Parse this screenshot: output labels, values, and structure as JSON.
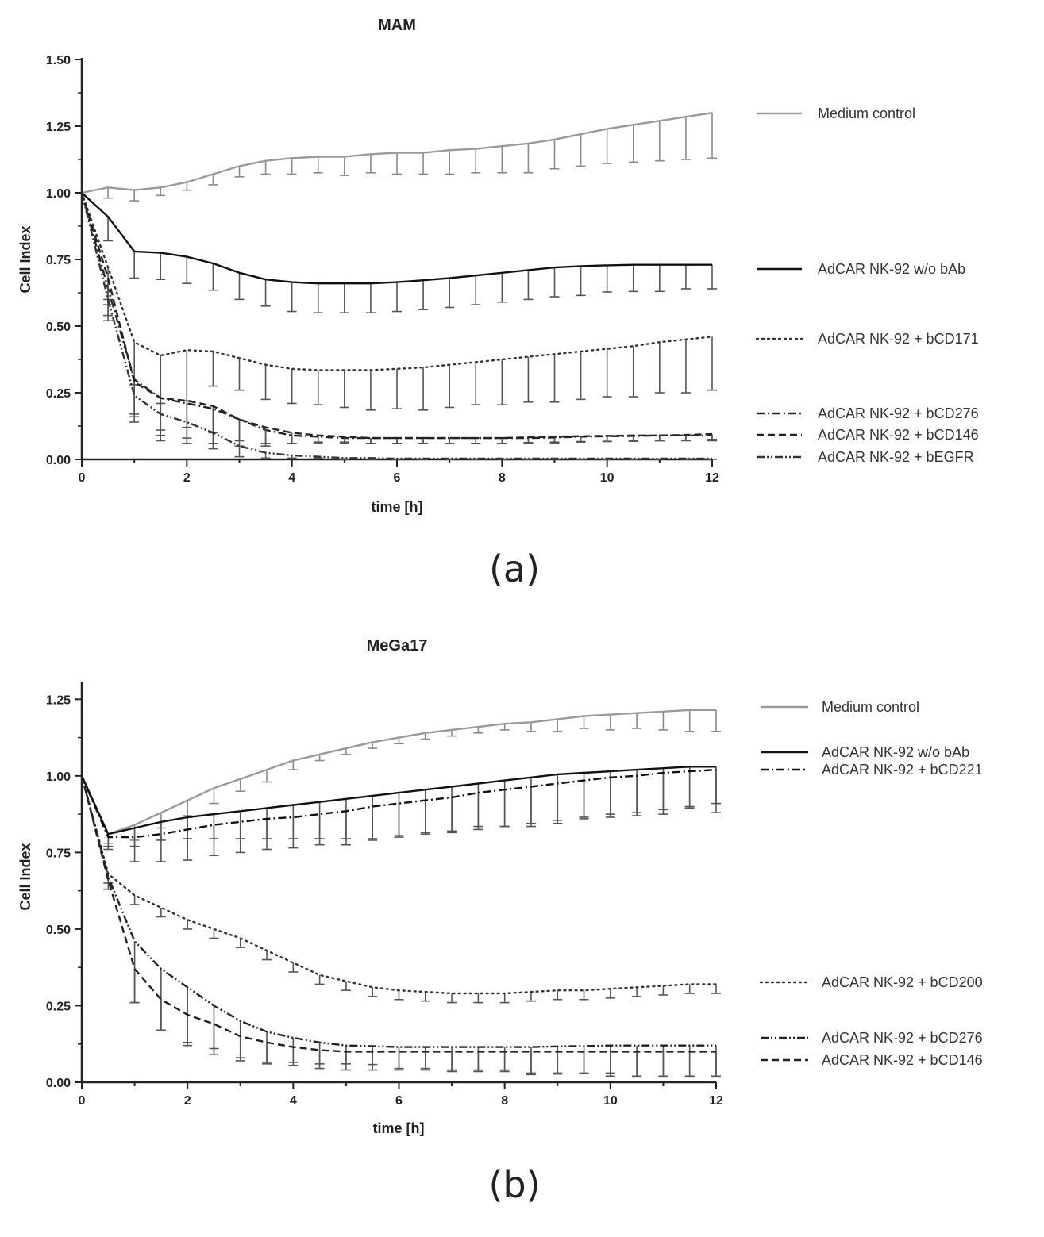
{
  "panel_labels": [
    "(a)",
    "(b)"
  ],
  "chart_data": [
    {
      "type": "line",
      "title": "MAM",
      "xlabel": "time [h]",
      "ylabel": "Cell Index",
      "xlim": [
        0,
        12
      ],
      "ylim": [
        0,
        1.5
      ],
      "xticks": [
        0,
        2,
        4,
        6,
        8,
        10,
        12
      ],
      "yticks": [
        0,
        0.25,
        0.5,
        0.75,
        1.0,
        1.25,
        1.5
      ],
      "ytick_labels": [
        "0.00",
        "0.25",
        "0.50",
        "0.75",
        "1.00",
        "1.25",
        "1.50"
      ],
      "grid": false,
      "legend": "right",
      "x": [
        0,
        0.5,
        1,
        1.5,
        2,
        2.5,
        3,
        3.5,
        4,
        4.5,
        5,
        5.5,
        6,
        6.5,
        7,
        7.5,
        8,
        8.5,
        9,
        9.5,
        10,
        10.5,
        11,
        11.5,
        12
      ],
      "series": [
        {
          "name": "Medium control",
          "style": "solid",
          "color": "#9a9a9a",
          "error_dir": "down",
          "values": [
            1.0,
            1.02,
            1.01,
            1.02,
            1.04,
            1.07,
            1.1,
            1.12,
            1.13,
            1.135,
            1.135,
            1.145,
            1.15,
            1.15,
            1.16,
            1.165,
            1.175,
            1.185,
            1.2,
            1.22,
            1.24,
            1.255,
            1.27,
            1.285,
            1.3
          ],
          "errors": [
            0,
            0.04,
            0.04,
            0.03,
            0.03,
            0.04,
            0.04,
            0.05,
            0.06,
            0.06,
            0.07,
            0.07,
            0.08,
            0.08,
            0.09,
            0.09,
            0.1,
            0.11,
            0.11,
            0.12,
            0.13,
            0.14,
            0.15,
            0.16,
            0.17
          ]
        },
        {
          "name": "AdCAR NK-92 w/o bAb",
          "style": "solid",
          "color": "#111111",
          "error_dir": "down",
          "values": [
            1.0,
            0.91,
            0.78,
            0.775,
            0.76,
            0.735,
            0.7,
            0.675,
            0.665,
            0.66,
            0.66,
            0.66,
            0.665,
            0.672,
            0.68,
            0.69,
            0.7,
            0.71,
            0.72,
            0.725,
            0.728,
            0.73,
            0.73,
            0.73,
            0.73
          ],
          "errors": [
            0,
            0.09,
            0.1,
            0.1,
            0.1,
            0.1,
            0.1,
            0.1,
            0.11,
            0.11,
            0.11,
            0.11,
            0.11,
            0.11,
            0.11,
            0.11,
            0.11,
            0.11,
            0.11,
            0.11,
            0.1,
            0.1,
            0.1,
            0.09,
            0.09
          ]
        },
        {
          "name": "AdCAR NK-92 + bCD171",
          "style": "dotted",
          "color": "#333333",
          "error_dir": "down",
          "values": [
            1.0,
            0.72,
            0.44,
            0.39,
            0.41,
            0.405,
            0.38,
            0.355,
            0.34,
            0.335,
            0.335,
            0.335,
            0.34,
            0.345,
            0.355,
            0.365,
            0.375,
            0.385,
            0.395,
            0.405,
            0.415,
            0.425,
            0.44,
            0.45,
            0.46
          ],
          "errors": [
            0,
            0.12,
            0.16,
            0.18,
            0.19,
            0.13,
            0.12,
            0.13,
            0.13,
            0.13,
            0.14,
            0.15,
            0.15,
            0.16,
            0.16,
            0.16,
            0.17,
            0.17,
            0.18,
            0.18,
            0.18,
            0.19,
            0.19,
            0.2,
            0.2
          ]
        },
        {
          "name": "AdCAR NK-92 + bCD276",
          "style": "dashdot",
          "color": "#222222",
          "error_dir": "down",
          "values": [
            1.0,
            0.64,
            0.3,
            0.23,
            0.21,
            0.19,
            0.15,
            0.11,
            0.09,
            0.085,
            0.08,
            0.08,
            0.08,
            0.08,
            0.08,
            0.08,
            0.08,
            0.08,
            0.082,
            0.085,
            0.087,
            0.088,
            0.09,
            0.09,
            0.09
          ],
          "errors": [
            0,
            0.1,
            0.14,
            0.14,
            0.13,
            0.13,
            0.1,
            0.06,
            0.03,
            0.02,
            0.02,
            0.02,
            0.02,
            0.02,
            0.02,
            0.02,
            0.02,
            0.02,
            0.02,
            0.02,
            0.02,
            0.02,
            0.02,
            0.02,
            0.02
          ]
        },
        {
          "name": "AdCAR NK-92 + bCD146",
          "style": "dashed",
          "color": "#222222",
          "error_dir": "down",
          "values": [
            1.0,
            0.68,
            0.29,
            0.23,
            0.22,
            0.2,
            0.15,
            0.12,
            0.1,
            0.09,
            0.085,
            0.08,
            0.08,
            0.08,
            0.08,
            0.08,
            0.08,
            0.083,
            0.085,
            0.087,
            0.088,
            0.09,
            0.09,
            0.092,
            0.095
          ],
          "errors": [
            0,
            0.1,
            0.12,
            0.12,
            0.1,
            0.1,
            0.08,
            0.06,
            0.04,
            0.03,
            0.02,
            0.02,
            0.02,
            0.02,
            0.02,
            0.02,
            0.02,
            0.02,
            0.02,
            0.02,
            0.02,
            0.02,
            0.02,
            0.02,
            0.02
          ]
        },
        {
          "name": "AdCAR NK-92 + bEGFR",
          "style": "dashdotdot",
          "color": "#333333",
          "error_dir": "down",
          "values": [
            1.0,
            0.6,
            0.24,
            0.17,
            0.14,
            0.1,
            0.05,
            0.025,
            0.015,
            0.01,
            0.005,
            0.005,
            0.003,
            0.003,
            0.003,
            0.003,
            0.003,
            0.003,
            0.003,
            0.003,
            0.003,
            0.003,
            0.003,
            0.003,
            0.003
          ],
          "errors": [
            0,
            0.08,
            0.1,
            0.1,
            0.08,
            0.06,
            0.04,
            0.02,
            0.01,
            0.005,
            0.005,
            0.005,
            0.005,
            0.005,
            0.005,
            0.005,
            0.005,
            0.005,
            0.005,
            0.005,
            0.005,
            0.005,
            0.005,
            0.005,
            0.005
          ]
        }
      ]
    },
    {
      "type": "line",
      "title": "MeGa17",
      "xlabel": "time [h]",
      "ylabel": "Cell Index",
      "xlim": [
        0,
        12
      ],
      "ylim": [
        0,
        1.3
      ],
      "xticks": [
        0,
        2,
        4,
        6,
        8,
        10,
        12
      ],
      "yticks": [
        0,
        0.25,
        0.5,
        0.75,
        1.0,
        1.25
      ],
      "ytick_labels": [
        "0.00",
        "0.25",
        "0.50",
        "0.75",
        "1.00",
        "1.25"
      ],
      "grid": false,
      "legend": "right",
      "x": [
        0,
        0.5,
        1,
        1.5,
        2,
        2.5,
        3,
        3.5,
        4,
        4.5,
        5,
        5.5,
        6,
        6.5,
        7,
        7.5,
        8,
        8.5,
        9,
        9.5,
        10,
        10.5,
        11,
        11.5,
        12
      ],
      "series": [
        {
          "name": "Medium control",
          "style": "solid",
          "color": "#9a9a9a",
          "error_dir": "down",
          "values": [
            1.0,
            0.81,
            0.84,
            0.88,
            0.92,
            0.96,
            0.99,
            1.02,
            1.05,
            1.07,
            1.09,
            1.11,
            1.125,
            1.14,
            1.15,
            1.16,
            1.17,
            1.175,
            1.185,
            1.195,
            1.2,
            1.205,
            1.21,
            1.215,
            1.215
          ],
          "errors": [
            0,
            0.03,
            0.05,
            0.05,
            0.05,
            0.05,
            0.04,
            0.04,
            0.03,
            0.02,
            0.02,
            0.02,
            0.02,
            0.02,
            0.02,
            0.02,
            0.02,
            0.03,
            0.04,
            0.04,
            0.05,
            0.05,
            0.06,
            0.07,
            0.07
          ]
        },
        {
          "name": "AdCAR NK-92 w/o bAb",
          "style": "solid",
          "color": "#111111",
          "error_dir": "down",
          "values": [
            1.0,
            0.81,
            0.83,
            0.85,
            0.865,
            0.875,
            0.885,
            0.895,
            0.905,
            0.915,
            0.925,
            0.935,
            0.945,
            0.955,
            0.965,
            0.975,
            0.985,
            0.995,
            1.005,
            1.01,
            1.015,
            1.02,
            1.025,
            1.03,
            1.03
          ],
          "errors": [
            0,
            0.04,
            0.06,
            0.06,
            0.07,
            0.08,
            0.09,
            0.1,
            0.11,
            0.12,
            0.13,
            0.14,
            0.14,
            0.14,
            0.15,
            0.15,
            0.15,
            0.16,
            0.16,
            0.15,
            0.15,
            0.15,
            0.15,
            0.13,
            0.12
          ]
        },
        {
          "name": "AdCAR NK-92 + bCD221",
          "style": "dashdot",
          "color": "#111111",
          "error_dir": "down",
          "values": [
            1.0,
            0.8,
            0.8,
            0.81,
            0.825,
            0.84,
            0.85,
            0.86,
            0.865,
            0.875,
            0.885,
            0.9,
            0.91,
            0.92,
            0.93,
            0.945,
            0.955,
            0.965,
            0.975,
            0.985,
            0.995,
            1.0,
            1.01,
            1.015,
            1.02
          ],
          "errors": [
            0,
            0.04,
            0.08,
            0.09,
            0.1,
            0.1,
            0.1,
            0.1,
            0.1,
            0.1,
            0.11,
            0.11,
            0.11,
            0.11,
            0.11,
            0.11,
            0.12,
            0.12,
            0.12,
            0.12,
            0.12,
            0.12,
            0.12,
            0.12,
            0.14
          ]
        },
        {
          "name": "AdCAR NK-92 + bCD200",
          "style": "dotted",
          "color": "#333333",
          "error_dir": "down",
          "values": [
            1.0,
            0.68,
            0.61,
            0.57,
            0.53,
            0.5,
            0.47,
            0.43,
            0.39,
            0.35,
            0.33,
            0.31,
            0.3,
            0.295,
            0.29,
            0.29,
            0.29,
            0.295,
            0.3,
            0.3,
            0.305,
            0.31,
            0.315,
            0.32,
            0.32
          ],
          "errors": [
            0,
            0.03,
            0.03,
            0.03,
            0.03,
            0.03,
            0.03,
            0.03,
            0.03,
            0.03,
            0.03,
            0.03,
            0.03,
            0.03,
            0.03,
            0.03,
            0.03,
            0.03,
            0.03,
            0.03,
            0.03,
            0.03,
            0.03,
            0.03,
            0.03
          ]
        },
        {
          "name": "AdCAR NK-92 + bCD276",
          "style": "dashdotdot",
          "color": "#222222",
          "error_dir": "down",
          "values": [
            1.0,
            0.67,
            0.46,
            0.37,
            0.31,
            0.25,
            0.2,
            0.165,
            0.145,
            0.13,
            0.12,
            0.118,
            0.115,
            0.115,
            0.115,
            0.115,
            0.115,
            0.115,
            0.117,
            0.118,
            0.12,
            0.12,
            0.12,
            0.12,
            0.12
          ],
          "errors": [
            0,
            0.04,
            0.2,
            0.2,
            0.19,
            0.16,
            0.13,
            0.1,
            0.08,
            0.07,
            0.06,
            0.06,
            0.07,
            0.07,
            0.08,
            0.08,
            0.08,
            0.09,
            0.09,
            0.09,
            0.1,
            0.1,
            0.1,
            0.1,
            0.1
          ]
        },
        {
          "name": "AdCAR NK-92 + bCD146",
          "style": "dashed",
          "color": "#222222",
          "error_dir": "down",
          "values": [
            1.0,
            0.66,
            0.37,
            0.27,
            0.22,
            0.19,
            0.15,
            0.13,
            0.115,
            0.105,
            0.1,
            0.1,
            0.1,
            0.1,
            0.1,
            0.1,
            0.1,
            0.1,
            0.1,
            0.1,
            0.1,
            0.1,
            0.1,
            0.1,
            0.1
          ],
          "errors": [
            0,
            0.03,
            0.11,
            0.1,
            0.09,
            0.08,
            0.07,
            0.07,
            0.06,
            0.06,
            0.06,
            0.06,
            0.06,
            0.06,
            0.06,
            0.06,
            0.06,
            0.07,
            0.07,
            0.07,
            0.07,
            0.08,
            0.08,
            0.08,
            0.08
          ]
        }
      ]
    }
  ]
}
